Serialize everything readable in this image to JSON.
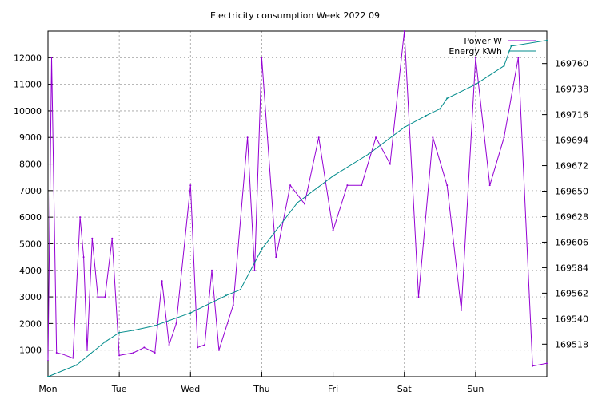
{
  "chart_data": {
    "type": "line",
    "title": "Electricity consumption Week 2022 09",
    "x_ticks": [
      "Mon",
      "Tue",
      "Wed",
      "Thu",
      "Fri",
      "Sat",
      "Sun"
    ],
    "x_range_days": [
      0,
      7
    ],
    "y_left": {
      "ticks": [
        1000,
        2000,
        3000,
        4000,
        5000,
        6000,
        7000,
        8000,
        9000,
        10000,
        11000,
        12000
      ],
      "range": [
        0,
        13000
      ]
    },
    "y_right": {
      "ticks": [
        169518,
        169540,
        169562,
        169584,
        169606,
        169628,
        169650,
        169672,
        169694,
        169716,
        169738,
        169760
      ],
      "range": [
        169490,
        169788
      ]
    },
    "grid": true,
    "legend_position": "top-right",
    "series": [
      {
        "name": "Power W",
        "axis": "left",
        "color": "#9400d3",
        "x": [
          0,
          0.05,
          0.12,
          0.2,
          0.35,
          0.45,
          0.5,
          0.55,
          0.62,
          0.7,
          0.8,
          0.9,
          1.0,
          1.2,
          1.35,
          1.5,
          1.6,
          1.7,
          1.8,
          2.0,
          2.1,
          2.2,
          2.3,
          2.4,
          2.6,
          2.8,
          2.9,
          3.0,
          3.2,
          3.4,
          3.6,
          3.8,
          4.0,
          4.2,
          4.4,
          4.6,
          4.8,
          5.0,
          5.2,
          5.4,
          5.6,
          5.8,
          6.0,
          6.2,
          6.4,
          6.6,
          6.8,
          7.0
        ],
        "y": [
          600,
          12000,
          900,
          850,
          700,
          6000,
          4500,
          1000,
          5200,
          3000,
          3000,
          5200,
          800,
          900,
          1100,
          900,
          3600,
          1200,
          2000,
          7200,
          1100,
          1200,
          4000,
          1000,
          2700,
          9000,
          4000,
          12000,
          4500,
          7200,
          6500,
          9000,
          5500,
          7200,
          7200,
          9000,
          8000,
          13000,
          3000,
          9000,
          7200,
          2500,
          12000,
          7200,
          9000,
          12000,
          400,
          500
        ]
      },
      {
        "name": "Energy KWh",
        "axis": "right",
        "color": "#008b8b",
        "x": [
          0,
          0.4,
          0.6,
          0.8,
          1.0,
          1.2,
          1.5,
          2.0,
          2.5,
          2.7,
          3.0,
          3.5,
          4.0,
          4.5,
          5.0,
          5.3,
          5.5,
          5.6,
          6.0,
          6.4,
          6.5,
          7.0
        ],
        "y": [
          169490,
          169500,
          169510,
          169520,
          169528,
          169530,
          169534,
          169545,
          169560,
          169565,
          169600,
          169640,
          169663,
          169682,
          169705,
          169715,
          169721,
          169730,
          169742,
          169758,
          169775,
          169780
        ]
      }
    ]
  }
}
